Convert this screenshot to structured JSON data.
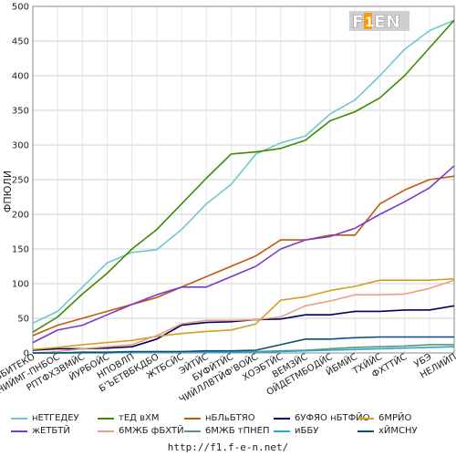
{
  "chart_data": {
    "type": "line",
    "ylabel": "ФПЮЛИ",
    "ylim": [
      0,
      500
    ],
    "yticks": [
      0,
      50,
      100,
      150,
      200,
      250,
      300,
      350,
      400,
      450,
      500
    ],
    "categories": [
      "ВБИТЕКО",
      "ЕНИЙМГ-ПНБОС",
      "РПТФХЗВМЙС",
      "ЙУРБОЙС",
      "НПОВЛП",
      "Б'ЪЕТВБКДБО",
      "ЖТБСЙС",
      "ЭЙТЙС",
      "БУФЙТЙС",
      "ЧИЙЛЛВТЙФ'ВОЙС",
      "ХОЭБТЙС",
      "ВЕМЗЙС",
      "ОЙДЕТМБОДЙС",
      "ЙБМЙС",
      "ТХЙЙС",
      "ФХТТЙС",
      "УБЭ",
      "НЕЛИЙП"
    ],
    "series": [
      {
        "name": "нЕТГЕДЕУ",
        "color": "#6fc7d2",
        "values": [
          43,
          60,
          95,
          130,
          145,
          149,
          178,
          215,
          243,
          287,
          303,
          313,
          345,
          365,
          400,
          438,
          465,
          480
        ]
      },
      {
        "name": "тЕД вХМ",
        "color": "#3e8b00",
        "values": [
          30,
          52,
          85,
          115,
          150,
          178,
          215,
          252,
          287,
          290,
          295,
          307,
          335,
          348,
          368,
          400,
          440,
          480
        ]
      },
      {
        "name": "нБЛьБТЯО",
        "color": "#c05a10",
        "values": [
          25,
          40,
          50,
          60,
          70,
          80,
          95,
          110,
          125,
          140,
          163,
          163,
          170,
          170,
          215,
          235,
          250,
          255
        ]
      },
      {
        "name": "6УФЯО нБТФЙО",
        "color": "#000066",
        "values": [
          4,
          6,
          6,
          7,
          9,
          20,
          40,
          44,
          45,
          48,
          49,
          55,
          55,
          60,
          60,
          62,
          62,
          68
        ]
      },
      {
        "name": "6МРЙО",
        "color": "#d4a020",
        "values": [
          5,
          8,
          12,
          15,
          18,
          24,
          28,
          31,
          33,
          42,
          76,
          81,
          90,
          96,
          105,
          105,
          105,
          107
        ]
      },
      {
        "name": "жЕТБТЙ",
        "color": "#7a3ad0",
        "values": [
          15,
          33,
          40,
          55,
          70,
          84,
          95,
          95,
          110,
          125,
          150,
          163,
          168,
          180,
          200,
          218,
          238,
          270
        ]
      },
      {
        "name": "6МЖБ фБХТЙ",
        "color": "#e8a080",
        "values": [
          0,
          2,
          6,
          9,
          12,
          25,
          42,
          47,
          47,
          48,
          52,
          68,
          75,
          84,
          84,
          85,
          93,
          105
        ]
      },
      {
        "name": "6МЖБ тПНЕП",
        "color": "#5a9a6a",
        "values": [
          0,
          0,
          0,
          0,
          1,
          2,
          2,
          2,
          2,
          2,
          3,
          4,
          6,
          8,
          9,
          10,
          12,
          12
        ]
      },
      {
        "name": "иББУ",
        "color": "#29a8d8",
        "values": [
          0,
          0,
          0,
          0,
          1,
          1,
          1,
          1,
          1,
          1,
          2,
          3,
          4,
          5,
          6,
          7,
          8,
          9
        ]
      },
      {
        "name": "хЙМСНУ",
        "color": "#0d4f7a",
        "values": [
          0,
          0,
          1,
          1,
          2,
          2,
          2,
          3,
          3,
          4,
          12,
          20,
          20,
          22,
          23,
          23,
          23,
          23
        ]
      }
    ]
  },
  "footer": {
    "url": "http://f1.f-e-n.net/"
  },
  "logo": {
    "text": "F1EN"
  }
}
